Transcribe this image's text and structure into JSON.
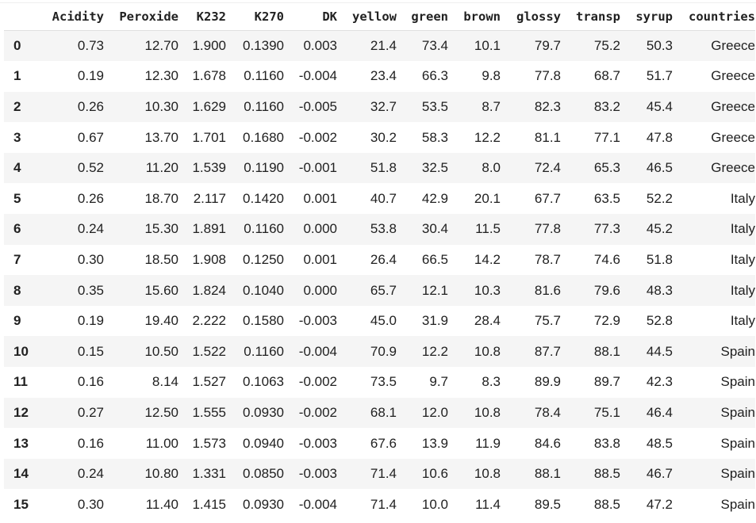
{
  "table": {
    "columns": [
      "Acidity",
      "Peroxide",
      "K232",
      "K270",
      "DK",
      "yellow",
      "green",
      "brown",
      "glossy",
      "transp",
      "syrup",
      "countries"
    ],
    "rows": [
      {
        "index": "0",
        "cells": [
          "0.73",
          "12.70",
          "1.900",
          "0.1390",
          "0.003",
          "21.4",
          "73.4",
          "10.1",
          "79.7",
          "75.2",
          "50.3",
          "Greece"
        ]
      },
      {
        "index": "1",
        "cells": [
          "0.19",
          "12.30",
          "1.678",
          "0.1160",
          "-0.004",
          "23.4",
          "66.3",
          "9.8",
          "77.8",
          "68.7",
          "51.7",
          "Greece"
        ]
      },
      {
        "index": "2",
        "cells": [
          "0.26",
          "10.30",
          "1.629",
          "0.1160",
          "-0.005",
          "32.7",
          "53.5",
          "8.7",
          "82.3",
          "83.2",
          "45.4",
          "Greece"
        ]
      },
      {
        "index": "3",
        "cells": [
          "0.67",
          "13.70",
          "1.701",
          "0.1680",
          "-0.002",
          "30.2",
          "58.3",
          "12.2",
          "81.1",
          "77.1",
          "47.8",
          "Greece"
        ]
      },
      {
        "index": "4",
        "cells": [
          "0.52",
          "11.20",
          "1.539",
          "0.1190",
          "-0.001",
          "51.8",
          "32.5",
          "8.0",
          "72.4",
          "65.3",
          "46.5",
          "Greece"
        ]
      },
      {
        "index": "5",
        "cells": [
          "0.26",
          "18.70",
          "2.117",
          "0.1420",
          "0.001",
          "40.7",
          "42.9",
          "20.1",
          "67.7",
          "63.5",
          "52.2",
          "Italy"
        ]
      },
      {
        "index": "6",
        "cells": [
          "0.24",
          "15.30",
          "1.891",
          "0.1160",
          "0.000",
          "53.8",
          "30.4",
          "11.5",
          "77.8",
          "77.3",
          "45.2",
          "Italy"
        ]
      },
      {
        "index": "7",
        "cells": [
          "0.30",
          "18.50",
          "1.908",
          "0.1250",
          "0.001",
          "26.4",
          "66.5",
          "14.2",
          "78.7",
          "74.6",
          "51.8",
          "Italy"
        ]
      },
      {
        "index": "8",
        "cells": [
          "0.35",
          "15.60",
          "1.824",
          "0.1040",
          "0.000",
          "65.7",
          "12.1",
          "10.3",
          "81.6",
          "79.6",
          "48.3",
          "Italy"
        ]
      },
      {
        "index": "9",
        "cells": [
          "0.19",
          "19.40",
          "2.222",
          "0.1580",
          "-0.003",
          "45.0",
          "31.9",
          "28.4",
          "75.7",
          "72.9",
          "52.8",
          "Italy"
        ]
      },
      {
        "index": "10",
        "cells": [
          "0.15",
          "10.50",
          "1.522",
          "0.1160",
          "-0.004",
          "70.9",
          "12.2",
          "10.8",
          "87.7",
          "88.1",
          "44.5",
          "Spain"
        ]
      },
      {
        "index": "11",
        "cells": [
          "0.16",
          "8.14",
          "1.527",
          "0.1063",
          "-0.002",
          "73.5",
          "9.7",
          "8.3",
          "89.9",
          "89.7",
          "42.3",
          "Spain"
        ]
      },
      {
        "index": "12",
        "cells": [
          "0.27",
          "12.50",
          "1.555",
          "0.0930",
          "-0.002",
          "68.1",
          "12.0",
          "10.8",
          "78.4",
          "75.1",
          "46.4",
          "Spain"
        ]
      },
      {
        "index": "13",
        "cells": [
          "0.16",
          "11.00",
          "1.573",
          "0.0940",
          "-0.003",
          "67.6",
          "13.9",
          "11.9",
          "84.6",
          "83.8",
          "48.5",
          "Spain"
        ]
      },
      {
        "index": "14",
        "cells": [
          "0.24",
          "10.80",
          "1.331",
          "0.0850",
          "-0.003",
          "71.4",
          "10.6",
          "10.8",
          "88.1",
          "88.5",
          "46.7",
          "Spain"
        ]
      },
      {
        "index": "15",
        "cells": [
          "0.30",
          "11.40",
          "1.415",
          "0.0930",
          "-0.004",
          "71.4",
          "10.0",
          "11.4",
          "89.5",
          "88.5",
          "47.2",
          "Spain"
        ]
      }
    ]
  }
}
